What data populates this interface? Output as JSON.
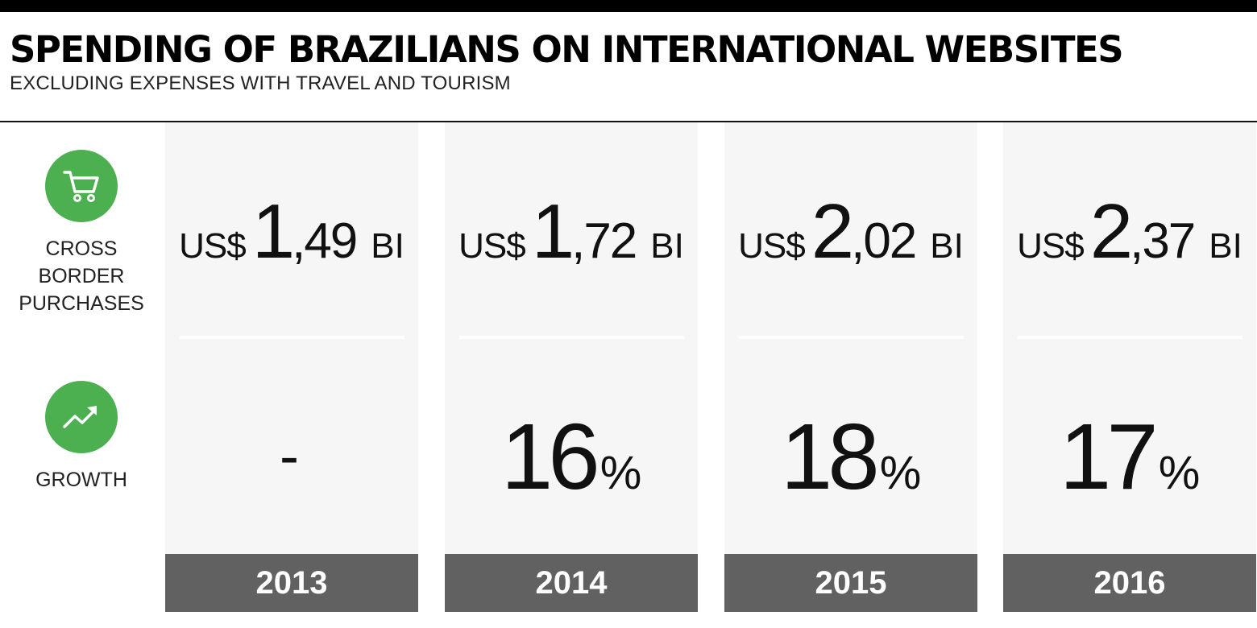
{
  "header": {
    "title": "SPENDING OF BRAZILIANS ON INTERNATIONAL WEBSITES",
    "subtitle": "EXCLUDING EXPENSES WITH TRAVEL AND TOURISM"
  },
  "rows": {
    "purchases": {
      "label_lines": [
        "CROSS",
        "BORDER",
        "PURCHASES"
      ],
      "icon": "shopping-cart-icon"
    },
    "growth": {
      "label": "GROWTH",
      "icon": "trending-up-icon"
    }
  },
  "colors": {
    "accent": "#4caf50",
    "column_bg": "#f6f6f6",
    "year_bar": "#616161"
  },
  "chart_data": {
    "type": "table",
    "title": "SPENDING OF BRAZILIANS ON INTERNATIONAL WEBSITES",
    "subtitle": "EXCLUDING EXPENSES WITH TRAVEL AND TOURISM",
    "columns": [
      {
        "year": "2013",
        "currency": "US$",
        "int": "1",
        "dec": ",49",
        "unit": "BI",
        "value": 1.49,
        "growth": "-",
        "growth_pct": "",
        "growth_value": null
      },
      {
        "year": "2014",
        "currency": "US$",
        "int": "1",
        "dec": ",72",
        "unit": "BI",
        "value": 1.72,
        "growth": "16",
        "growth_pct": "%",
        "growth_value": 16
      },
      {
        "year": "2015",
        "currency": "US$",
        "int": "2",
        "dec": ",02",
        "unit": "BI",
        "value": 2.02,
        "growth": "18",
        "growth_pct": "%",
        "growth_value": 18
      },
      {
        "year": "2016",
        "currency": "US$",
        "int": "2",
        "dec": ",37",
        "unit": "BI",
        "value": 2.37,
        "growth": "17",
        "growth_pct": "%",
        "growth_value": 17
      }
    ]
  }
}
